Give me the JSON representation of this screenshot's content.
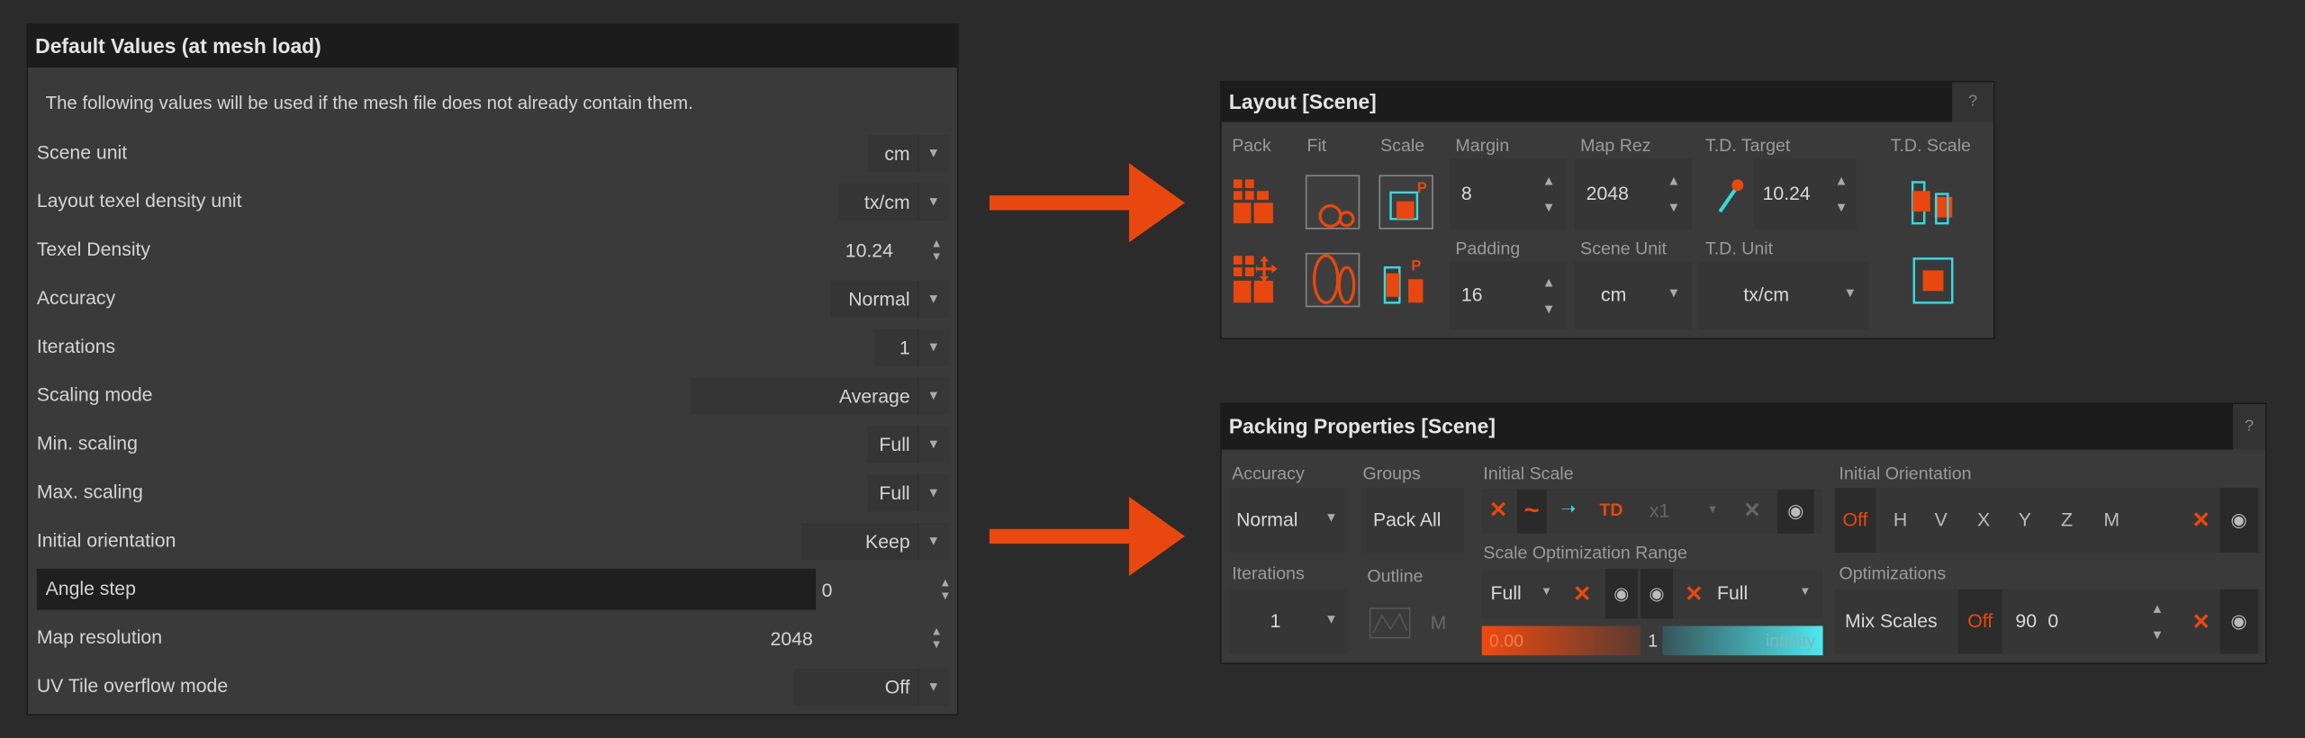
{
  "default_values": {
    "title": "Default Values (at mesh load)",
    "description": "The following values will be used if the mesh file does not already contain them.",
    "rows": [
      {
        "label": "Scene unit",
        "value": "cm",
        "control": "dropdown"
      },
      {
        "label": "Layout texel density unit",
        "value": "tx/cm",
        "control": "dropdown"
      },
      {
        "label": "Texel Density",
        "value": "10.24",
        "control": "spinner"
      },
      {
        "label": "Accuracy",
        "value": "Normal",
        "control": "dropdown"
      },
      {
        "label": "Iterations",
        "value": "1",
        "control": "dropdown"
      },
      {
        "label": "Scaling mode",
        "value": "Average",
        "control": "dropdown"
      },
      {
        "label": "Min. scaling",
        "value": "Full",
        "control": "dropdown"
      },
      {
        "label": "Max. scaling",
        "value": "Full",
        "control": "dropdown"
      },
      {
        "label": "Initial orientation",
        "value": "Keep",
        "control": "dropdown"
      },
      {
        "label": "Angle step",
        "value": "0",
        "control": "spinner"
      },
      {
        "label": "Map resolution",
        "value": "2048",
        "control": "spinner"
      },
      {
        "label": "UV Tile overflow mode",
        "value": "Off",
        "control": "dropdown"
      }
    ]
  },
  "arrow_color": "#e8480f",
  "layout": {
    "title": "Layout [Scene]",
    "help": "?",
    "labels": {
      "pack": "Pack",
      "fit": "Fit",
      "scale": "Scale",
      "margin": "Margin",
      "map_rez": "Map Rez",
      "td_target": "T.D. Target",
      "td_scale": "T.D. Scale",
      "padding": "Padding",
      "scene_unit": "Scene Unit",
      "td_unit": "T.D. Unit"
    },
    "values": {
      "margin": "8",
      "map_rez": "2048",
      "td_target": "10.24",
      "padding": "16",
      "scene_unit": "cm",
      "td_unit": "tx/cm"
    },
    "icon_letter": "P"
  },
  "packing": {
    "title": "Packing Properties [Scene]",
    "help": "?",
    "labels": {
      "accuracy": "Accuracy",
      "groups": "Groups",
      "initial_scale": "Initial Scale",
      "initial_orientation": "Initial Orientation",
      "iterations": "Iterations",
      "outline": "Outline",
      "scale_opt_range": "Scale Optimization Range",
      "optimizations": "Optimizations"
    },
    "values": {
      "accuracy": "Normal",
      "groups": "Pack All",
      "td": "TD",
      "multiplier": "x1",
      "iterations": "1",
      "outline_m": "M",
      "range_min": "Full",
      "range_max": "Full",
      "range_low": "0.00",
      "range_mid": "1",
      "range_high": "infinity",
      "orientation": [
        "Off",
        "H",
        "V",
        "X",
        "Y",
        "Z",
        "M"
      ],
      "mix_scales": "Mix Scales",
      "opt_off": "Off",
      "opt_90": "90",
      "opt_0": "0"
    }
  },
  "colors": {
    "accent": "#e8480f",
    "cyan": "#3ad8e0",
    "panel": "#3a3a3a",
    "header": "#1c1c1c",
    "background": "#2b2b2b"
  }
}
